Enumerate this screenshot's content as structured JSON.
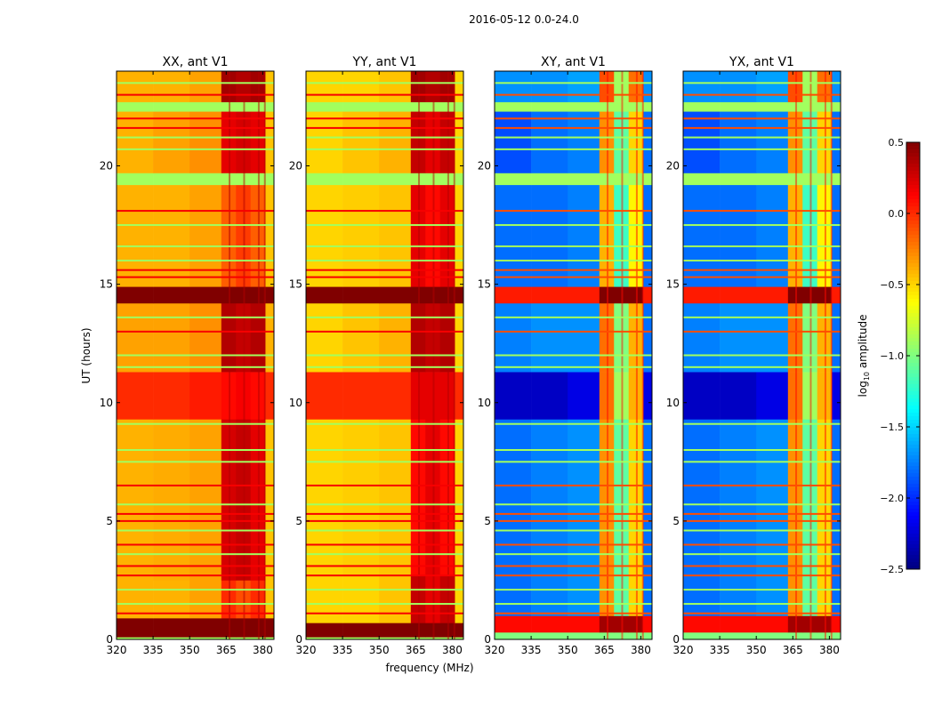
{
  "chart_data": {
    "type": "heatmap",
    "title": "2016-05-12 0.0-24.0",
    "xlabel": "frequency (MHz)",
    "ylabel": "UT (hours)",
    "xlim": [
      320,
      384.6
    ],
    "ylim": [
      0,
      24
    ],
    "xticks": [
      "320",
      "335",
      "350",
      "365",
      "380"
    ],
    "xtick_values": [
      320,
      335,
      350,
      365,
      380
    ],
    "yticks": [
      "0",
      "5",
      "10",
      "15",
      "20"
    ],
    "ytick_values": [
      0,
      5,
      10,
      15,
      20
    ],
    "freq_edges": [
      320,
      335,
      350,
      363,
      369,
      375,
      381,
      384.6
    ],
    "colorbar": {
      "label_main": "log",
      "label_sub": "10",
      "label_rest": " amplitude",
      "colormap": "jet",
      "range": [
        -2.5,
        0.5
      ],
      "ticks": [
        "0.5",
        "0.0",
        "−0.5",
        "−1.0",
        "−1.5",
        "−2.0",
        "−2.5"
      ],
      "tick_values": [
        0.5,
        0.0,
        -0.5,
        -1.0,
        -1.5,
        -2.0,
        -2.5
      ]
    },
    "lines": [
      [
        1.1,
        "hot"
      ],
      [
        1.5,
        "flag"
      ],
      [
        2.1,
        "flag"
      ],
      [
        2.7,
        "hot"
      ],
      [
        3.1,
        "hot"
      ],
      [
        3.6,
        "flag"
      ],
      [
        4.0,
        "hot"
      ],
      [
        4.6,
        "flag"
      ],
      [
        5.0,
        "hot"
      ],
      [
        5.3,
        "hot"
      ],
      [
        5.7,
        "flag"
      ],
      [
        6.5,
        "hot"
      ],
      [
        7.5,
        "flag"
      ],
      [
        8.0,
        "flag"
      ],
      [
        9.1,
        "flag"
      ],
      [
        11.5,
        "flag"
      ],
      [
        12.0,
        "flag"
      ],
      [
        13.0,
        "hot"
      ],
      [
        13.6,
        "flag"
      ],
      [
        15.3,
        "hot"
      ],
      [
        15.6,
        "hot"
      ],
      [
        16.0,
        "flag"
      ],
      [
        16.6,
        "flag"
      ],
      [
        17.5,
        "flag"
      ],
      [
        18.1,
        "hot"
      ],
      [
        20.7,
        "flag"
      ],
      [
        21.2,
        "flag"
      ],
      [
        21.6,
        "hot"
      ],
      [
        22.0,
        "hot"
      ],
      [
        23.0,
        "hot"
      ],
      [
        23.5,
        "flag"
      ]
    ],
    "panels": [
      {
        "title": "XX, ant V1",
        "hot_line": 0.15,
        "bands": [
          {
            "t": [
              0,
              0.1
            ],
            "v": [
              -0.9,
              -0.9,
              -0.9,
              -0.9,
              -0.9,
              -0.9,
              -0.9
            ]
          },
          {
            "t": [
              0.1,
              0.9
            ],
            "v": [
              0.5,
              0.5,
              0.5,
              0.5,
              0.5,
              0.5,
              0.5
            ]
          },
          {
            "t": [
              0.9,
              2.5
            ],
            "v": [
              -0.4,
              -0.4,
              -0.35,
              0.0,
              -0.1,
              0.0,
              -0.45
            ]
          },
          {
            "t": [
              2.5,
              9.3
            ],
            "v": [
              -0.4,
              -0.38,
              -0.35,
              0.25,
              0.3,
              0.2,
              -0.45
            ]
          },
          {
            "t": [
              9.3,
              11.3
            ],
            "v": [
              0.0,
              0.0,
              0.05,
              0.1,
              0.15,
              0.1,
              0.0
            ]
          },
          {
            "t": [
              11.3,
              14.2
            ],
            "v": [
              -0.35,
              -0.35,
              -0.3,
              0.35,
              0.3,
              0.35,
              -0.4
            ]
          },
          {
            "t": [
              14.2,
              14.9
            ],
            "v": [
              0.5,
              0.5,
              0.5,
              0.5,
              0.5,
              0.5,
              0.5
            ]
          },
          {
            "t": [
              14.9,
              19.2
            ],
            "v": [
              -0.4,
              -0.4,
              -0.35,
              -0.15,
              -0.05,
              -0.15,
              -0.45
            ]
          },
          {
            "t": [
              19.2,
              19.7
            ],
            "v": [
              -0.9,
              -0.9,
              -0.9,
              -0.9,
              -0.9,
              -0.9,
              -0.9
            ]
          },
          {
            "t": [
              19.7,
              22.3
            ],
            "v": [
              -0.4,
              -0.35,
              -0.3,
              0.2,
              0.25,
              0.2,
              -0.45
            ]
          },
          {
            "t": [
              22.3,
              22.7
            ],
            "v": [
              -0.9,
              -0.9,
              -0.9,
              -0.9,
              -0.9,
              -0.9,
              -0.9
            ]
          },
          {
            "t": [
              22.7,
              24
            ],
            "v": [
              -0.4,
              -0.4,
              -0.35,
              0.4,
              0.35,
              0.4,
              -0.45
            ]
          }
        ]
      },
      {
        "title": "YY, ant V1",
        "hot_line": 0.15,
        "bands": [
          {
            "t": [
              0,
              0.1
            ],
            "v": [
              -0.9,
              -0.9,
              -0.9,
              -0.9,
              -0.9,
              -0.9,
              -0.9
            ]
          },
          {
            "t": [
              0.1,
              0.7
            ],
            "v": [
              0.5,
              0.5,
              0.5,
              0.5,
              0.5,
              0.5,
              0.5
            ]
          },
          {
            "t": [
              0.7,
              2.7
            ],
            "v": [
              -0.5,
              -0.5,
              -0.45,
              0.3,
              0.2,
              0.3,
              -0.5
            ]
          },
          {
            "t": [
              2.7,
              9.3
            ],
            "v": [
              -0.5,
              -0.48,
              -0.45,
              0.1,
              0.2,
              0.1,
              -0.5
            ]
          },
          {
            "t": [
              9.3,
              11.3
            ],
            "v": [
              0.0,
              0.0,
              0.0,
              0.2,
              0.2,
              0.2,
              0.0
            ]
          },
          {
            "t": [
              11.3,
              14.2
            ],
            "v": [
              -0.5,
              -0.45,
              -0.4,
              0.35,
              0.3,
              0.35,
              -0.5
            ]
          },
          {
            "t": [
              14.2,
              14.9
            ],
            "v": [
              0.5,
              0.5,
              0.5,
              0.5,
              0.5,
              0.5,
              0.5
            ]
          },
          {
            "t": [
              14.9,
              19.2
            ],
            "v": [
              -0.5,
              -0.48,
              -0.45,
              0.2,
              0.1,
              0.2,
              -0.5
            ]
          },
          {
            "t": [
              19.2,
              19.7
            ],
            "v": [
              -0.9,
              -0.9,
              -0.9,
              -0.9,
              -0.9,
              -0.9,
              -0.9
            ]
          },
          {
            "t": [
              19.7,
              22.3
            ],
            "v": [
              -0.5,
              -0.45,
              -0.4,
              0.3,
              0.2,
              0.3,
              -0.5
            ]
          },
          {
            "t": [
              22.3,
              22.7
            ],
            "v": [
              -0.9,
              -0.9,
              -0.9,
              -0.9,
              -0.9,
              -0.9,
              -0.9
            ]
          },
          {
            "t": [
              22.7,
              24
            ],
            "v": [
              -0.5,
              -0.5,
              -0.45,
              0.4,
              0.35,
              0.4,
              -0.5
            ]
          }
        ]
      },
      {
        "title": "XY, ant V1",
        "hot_line": -0.1,
        "bands": [
          {
            "t": [
              0,
              0.3
            ],
            "v": [
              -1.0,
              -1.0,
              -1.0,
              -1.0,
              -1.0,
              -1.0,
              -1.0
            ]
          },
          {
            "t": [
              0.3,
              1.0
            ],
            "v": [
              0.1,
              0.1,
              0.1,
              0.4,
              0.4,
              0.4,
              0.1
            ]
          },
          {
            "t": [
              1.0,
              9.3
            ],
            "v": [
              -1.8,
              -1.75,
              -1.7,
              -0.3,
              -1.1,
              -0.5,
              -1.8
            ]
          },
          {
            "t": [
              9.3,
              11.3
            ],
            "v": [
              -2.3,
              -2.3,
              -2.2,
              -0.2,
              -0.9,
              -0.4,
              -2.2
            ]
          },
          {
            "t": [
              11.3,
              14.2
            ],
            "v": [
              -1.75,
              -1.7,
              -1.7,
              -0.2,
              -1.0,
              -0.4,
              -1.8
            ]
          },
          {
            "t": [
              14.2,
              14.9
            ],
            "v": [
              0.05,
              0.05,
              0.05,
              0.5,
              0.5,
              0.5,
              0.05
            ]
          },
          {
            "t": [
              14.9,
              19.2
            ],
            "v": [
              -1.8,
              -1.8,
              -1.75,
              -0.4,
              -1.2,
              -0.6,
              -1.8
            ]
          },
          {
            "t": [
              19.2,
              19.7
            ],
            "v": [
              -0.9,
              -0.9,
              -0.9,
              -0.9,
              -0.9,
              -0.9,
              -0.9
            ]
          },
          {
            "t": [
              19.7,
              22.3
            ],
            "v": [
              -1.9,
              -1.8,
              -1.75,
              -0.3,
              -1.1,
              -0.5,
              -1.8
            ]
          },
          {
            "t": [
              22.3,
              22.7
            ],
            "v": [
              -0.9,
              -0.9,
              -0.9,
              -0.9,
              -0.9,
              -0.9,
              -0.9
            ]
          },
          {
            "t": [
              22.7,
              24
            ],
            "v": [
              -1.7,
              -1.7,
              -1.65,
              -0.1,
              -0.9,
              -0.2,
              -1.7
            ]
          }
        ]
      },
      {
        "title": "YX, ant V1",
        "hot_line": -0.1,
        "bands": [
          {
            "t": [
              0,
              0.3
            ],
            "v": [
              -1.0,
              -1.0,
              -1.0,
              -1.0,
              -1.0,
              -1.0,
              -1.0
            ]
          },
          {
            "t": [
              0.3,
              1.0
            ],
            "v": [
              0.1,
              0.1,
              0.1,
              0.4,
              0.4,
              0.4,
              0.1
            ]
          },
          {
            "t": [
              1.0,
              9.3
            ],
            "v": [
              -1.8,
              -1.75,
              -1.7,
              -0.3,
              -1.1,
              -0.5,
              -1.8
            ]
          },
          {
            "t": [
              9.3,
              11.3
            ],
            "v": [
              -2.3,
              -2.3,
              -2.2,
              -0.2,
              -0.9,
              -0.4,
              -2.2
            ]
          },
          {
            "t": [
              11.3,
              14.2
            ],
            "v": [
              -1.75,
              -1.7,
              -1.7,
              -0.2,
              -1.0,
              -0.4,
              -1.8
            ]
          },
          {
            "t": [
              14.2,
              14.9
            ],
            "v": [
              0.05,
              0.05,
              0.05,
              0.5,
              0.5,
              0.5,
              0.05
            ]
          },
          {
            "t": [
              14.9,
              19.2
            ],
            "v": [
              -1.8,
              -1.8,
              -1.75,
              -0.4,
              -1.2,
              -0.6,
              -1.8
            ]
          },
          {
            "t": [
              19.2,
              19.7
            ],
            "v": [
              -0.9,
              -0.9,
              -0.9,
              -0.9,
              -0.9,
              -0.9,
              -0.9
            ]
          },
          {
            "t": [
              19.7,
              22.3
            ],
            "v": [
              -1.9,
              -1.8,
              -1.75,
              -0.3,
              -1.1,
              -0.5,
              -1.8
            ]
          },
          {
            "t": [
              22.3,
              22.7
            ],
            "v": [
              -0.9,
              -0.9,
              -0.9,
              -0.9,
              -0.9,
              -0.9,
              -0.9
            ]
          },
          {
            "t": [
              22.7,
              24
            ],
            "v": [
              -1.7,
              -1.7,
              -1.65,
              -0.1,
              -0.9,
              -0.2,
              -1.7
            ]
          }
        ]
      }
    ]
  }
}
